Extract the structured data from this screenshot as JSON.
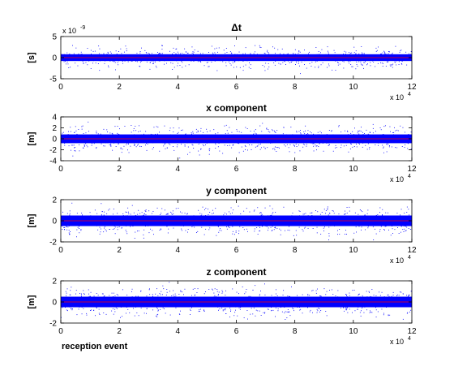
{
  "chart_data": [
    {
      "type": "scatter",
      "title": "Δt",
      "ylabel": "[s]",
      "xlabel": "",
      "xlim": [
        0,
        120000
      ],
      "ylim": [
        -5e-09,
        5e-09
      ],
      "xticks": [
        "0",
        "2",
        "4",
        "6",
        "8",
        "10",
        "12"
      ],
      "yticks": [
        "5",
        "0",
        "-5"
      ],
      "x_multiplier": {
        "base": "x 10",
        "exp": "4"
      },
      "y_multiplier": {
        "base": "x 10",
        "exp": "-9"
      },
      "series": [
        {
          "color": "#0000ff",
          "mean": 0,
          "core_halfwidth": 8e-10,
          "spread": 3e-09
        }
      ],
      "mean_line": {
        "value": 0,
        "color": "#ff0000"
      },
      "grid": false
    },
    {
      "type": "scatter",
      "title": "x component",
      "ylabel": "[m]",
      "xlabel": "",
      "xlim": [
        0,
        120000
      ],
      "ylim": [
        -4,
        4
      ],
      "xticks": [
        "0",
        "2",
        "4",
        "6",
        "8",
        "10",
        "12"
      ],
      "yticks": [
        "4",
        "2",
        "0",
        "-2",
        "-4"
      ],
      "x_multiplier": {
        "base": "x 10",
        "exp": "4"
      },
      "series": [
        {
          "color": "#0000ff",
          "mean": 0,
          "core_halfwidth": 0.8,
          "spread": 2.5
        }
      ],
      "mean_line": {
        "value": 0,
        "color": "#ff0000"
      },
      "grid": false
    },
    {
      "type": "scatter",
      "title": "y component",
      "ylabel": "[m]",
      "xlabel": "",
      "xlim": [
        0,
        120000
      ],
      "ylim": [
        -2,
        2
      ],
      "xticks": [
        "0",
        "2",
        "4",
        "6",
        "8",
        "10",
        "12"
      ],
      "yticks": [
        "2",
        "0",
        "-2"
      ],
      "x_multiplier": {
        "base": "x 10",
        "exp": "4"
      },
      "series": [
        {
          "color": "#0000ff",
          "mean": 0,
          "core_halfwidth": 0.5,
          "spread": 1.3
        }
      ],
      "mean_line": {
        "value": 0,
        "color": "#ff0000"
      },
      "grid": false
    },
    {
      "type": "scatter",
      "title": "z component",
      "ylabel": "[m]",
      "xlabel": "reception event",
      "xlim": [
        0,
        120000
      ],
      "ylim": [
        -2,
        2
      ],
      "xticks": [
        "0",
        "2",
        "4",
        "6",
        "8",
        "10",
        "12"
      ],
      "yticks": [
        "2",
        "0",
        "-2"
      ],
      "x_multiplier": {
        "base": "x 10",
        "exp": "4"
      },
      "series": [
        {
          "color": "#0000ff",
          "mean": 0,
          "core_halfwidth": 0.5,
          "spread": 1.3
        }
      ],
      "mean_line": {
        "value": 0,
        "color": "#ff0000"
      },
      "grid": false
    }
  ]
}
